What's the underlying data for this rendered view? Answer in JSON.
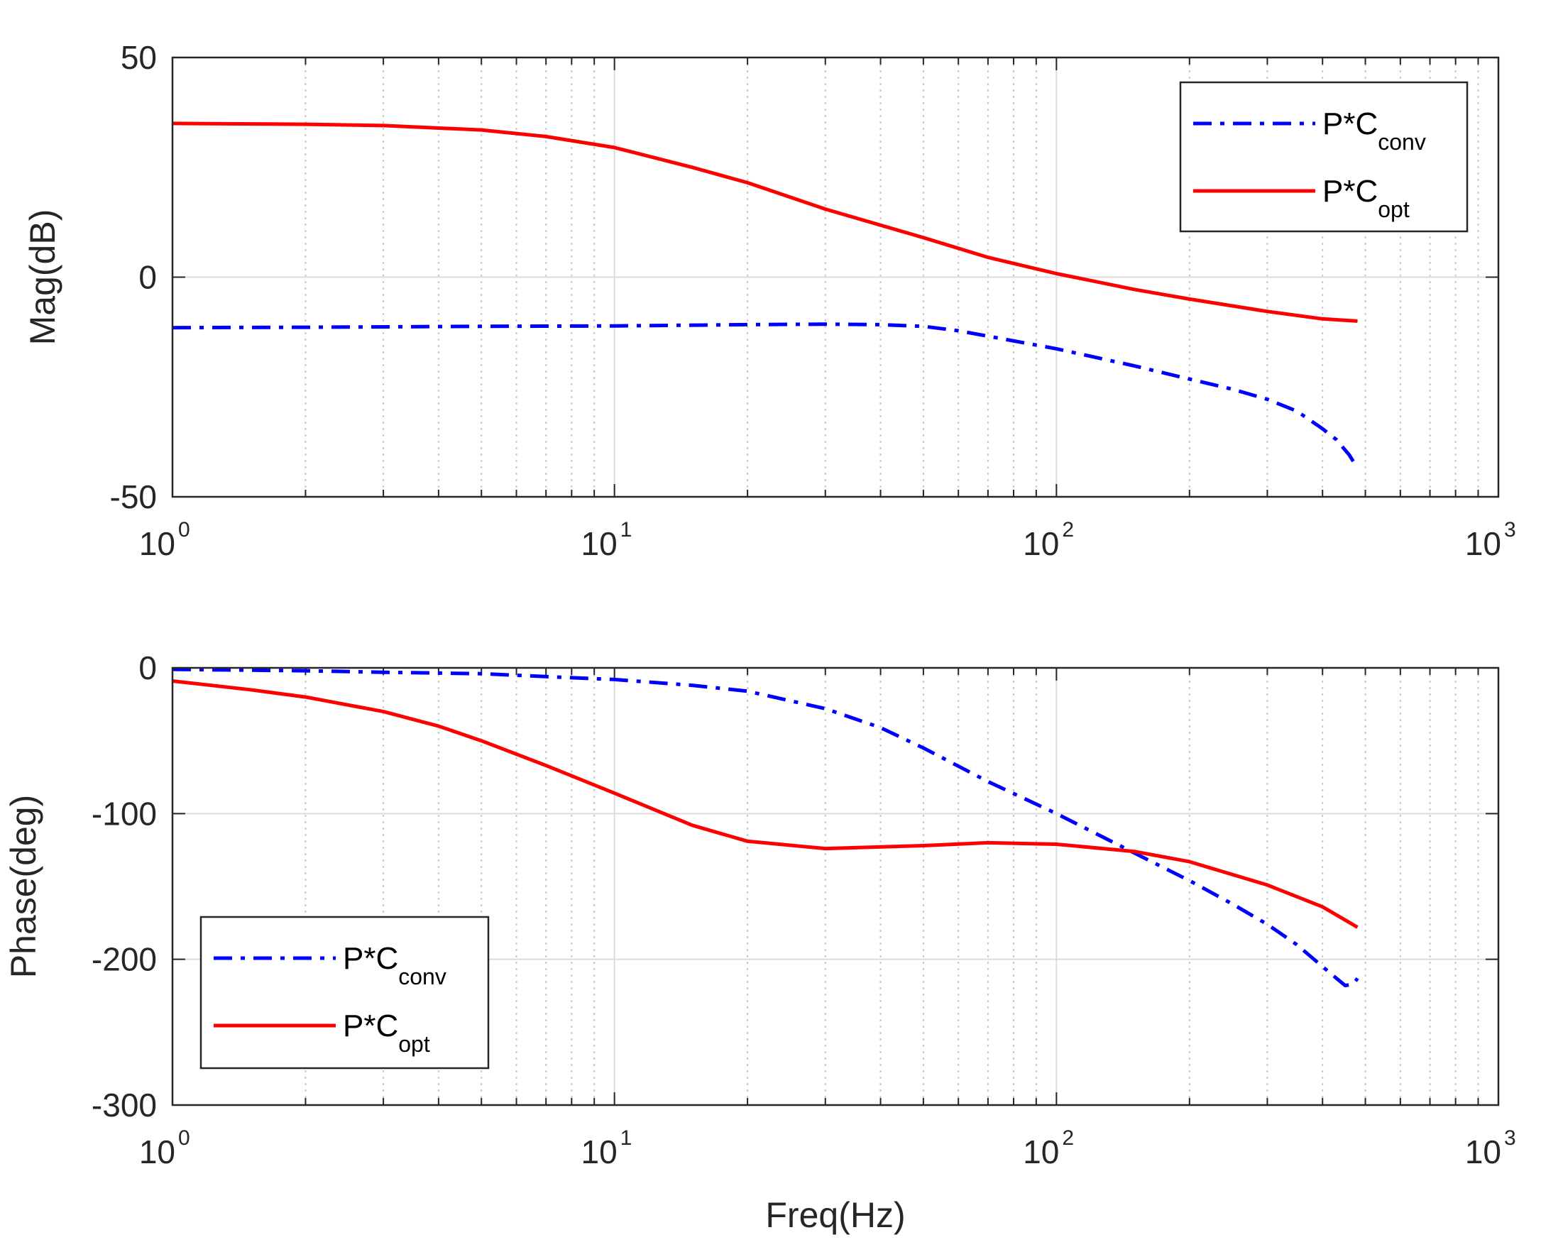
{
  "chart_data": [
    {
      "type": "line",
      "id": "magnitude",
      "xscale": "log",
      "xlim": [
        1,
        1000
      ],
      "ylim": [
        -50,
        50
      ],
      "xlabel": "",
      "ylabel": "Mag(dB)",
      "yticks": [
        {
          "value": 50,
          "label": "50"
        },
        {
          "value": 0,
          "label": "0"
        },
        {
          "value": -50,
          "label": "-50"
        }
      ],
      "xticks": [
        {
          "value": 1,
          "base": "10",
          "exp": "0"
        },
        {
          "value": 10,
          "base": "10",
          "exp": "1"
        },
        {
          "value": 100,
          "base": "10",
          "exp": "2"
        },
        {
          "value": 1000,
          "base": "10",
          "exp": "3"
        }
      ],
      "grid": true,
      "legend": {
        "position": "top-right"
      },
      "series": [
        {
          "name": "P*C",
          "sub": "conv",
          "color": "#0000ff",
          "style": "dashdot",
          "x": [
            1,
            2,
            5,
            10,
            20,
            30,
            40,
            50,
            60,
            80,
            100,
            150,
            200,
            250,
            300,
            350,
            400,
            430,
            460,
            480
          ],
          "y": [
            -11.5,
            -11.4,
            -11.2,
            -11.1,
            -10.8,
            -10.7,
            -10.8,
            -11.2,
            -12.2,
            -14.5,
            -16.3,
            -20.2,
            -23.2,
            -25.5,
            -27.8,
            -30.5,
            -34.5,
            -37.0,
            -40.5,
            -43.5
          ]
        },
        {
          "name": "P*C",
          "sub": "opt",
          "color": "#ff0000",
          "style": "solid",
          "x": [
            1,
            2,
            3,
            5,
            7,
            10,
            15,
            20,
            30,
            50,
            70,
            100,
            150,
            200,
            300,
            400,
            480
          ],
          "y": [
            35,
            34.8,
            34.5,
            33.5,
            32,
            29.5,
            25,
            21.5,
            15.5,
            9,
            4.5,
            0.8,
            -2.8,
            -5,
            -7.8,
            -9.5,
            -10
          ]
        }
      ]
    },
    {
      "type": "line",
      "id": "phase",
      "xscale": "log",
      "xlim": [
        1,
        1000
      ],
      "ylim": [
        -300,
        0
      ],
      "xlabel": "Freq(Hz)",
      "ylabel": "Phase(deg)",
      "yticks": [
        {
          "value": 0,
          "label": "0"
        },
        {
          "value": -100,
          "label": "-100"
        },
        {
          "value": -200,
          "label": "-200"
        },
        {
          "value": -300,
          "label": "-300"
        }
      ],
      "xticks": [
        {
          "value": 1,
          "base": "10",
          "exp": "0"
        },
        {
          "value": 10,
          "base": "10",
          "exp": "1"
        },
        {
          "value": 100,
          "base": "10",
          "exp": "2"
        },
        {
          "value": 1000,
          "base": "10",
          "exp": "3"
        }
      ],
      "grid": true,
      "legend": {
        "position": "bottom-left"
      },
      "series": [
        {
          "name": "P*C",
          "sub": "conv",
          "color": "#0000ff",
          "style": "dashdot",
          "x": [
            1,
            2,
            3,
            5,
            7,
            10,
            15,
            20,
            30,
            40,
            50,
            70,
            100,
            150,
            200,
            250,
            300,
            350,
            400,
            430,
            450,
            470,
            480
          ],
          "y": [
            -1,
            -2,
            -3,
            -4,
            -6,
            -8,
            -12,
            -16,
            -28,
            -41,
            -55,
            -78,
            -100,
            -127,
            -146,
            -162,
            -176,
            -190,
            -205,
            -213,
            -218,
            -217,
            -213
          ]
        },
        {
          "name": "P*C",
          "sub": "opt",
          "color": "#ff0000",
          "style": "solid",
          "x": [
            1,
            1.5,
            2,
            3,
            4,
            5,
            7,
            10,
            15,
            20,
            30,
            50,
            70,
            100,
            150,
            200,
            300,
            400,
            480
          ],
          "y": [
            -9,
            -15,
            -20,
            -30,
            -40,
            -50,
            -67,
            -86,
            -108,
            -119,
            -124,
            -122,
            -120,
            -121,
            -126,
            -133,
            -149,
            -164,
            -178
          ]
        }
      ]
    }
  ]
}
